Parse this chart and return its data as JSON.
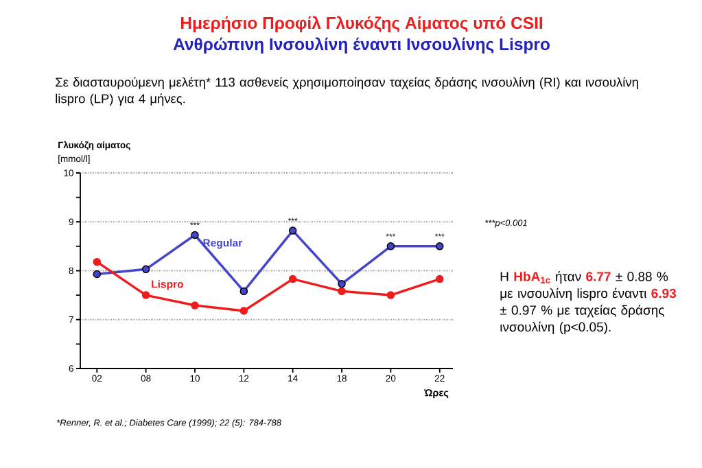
{
  "chart_data": {
    "type": "line",
    "title": "Ημερήσιο Προφίλ Γλυκόζης Αίματος υπό CSII",
    "subtitle": "Ανθρώπινη Ινσουλίνη έναντι Ινσουλίνης Lispro",
    "ylabel": "Γλυκόζη αίματος",
    "xlabel": "Ώρες",
    "categories": [
      "02",
      "08",
      "10",
      "12",
      "14",
      "18",
      "20",
      "22"
    ],
    "series": [
      {
        "name": "Regular",
        "color": "#4444cc",
        "values": [
          7.93,
          8.03,
          8.73,
          7.58,
          8.82,
          7.73,
          8.5,
          8.5
        ]
      },
      {
        "name": "Lispro",
        "color": "#ee1c1c",
        "values": [
          8.18,
          7.5,
          7.29,
          7.18,
          7.83,
          7.58,
          7.5,
          7.83
        ]
      }
    ],
    "ylim": [
      6,
      10
    ],
    "yticks": [
      6,
      7,
      8,
      9,
      10
    ],
    "grid": "y",
    "legend": false,
    "marker": "circle",
    "line_style": "solid",
    "annotations": [
      {
        "text": "***",
        "x": "10",
        "y": 8.73
      },
      {
        "text": "***",
        "x": "14",
        "y": 8.82
      },
      {
        "text": "***",
        "x": "20",
        "y": 8.5
      },
      {
        "text": "***",
        "x": "22",
        "y": 8.5
      },
      "***p<0.001",
      "[mmol/l]",
      "Σε διασταυρούμενη μελέτη* 113 ασθενείς χρησιμοποίησαν ταχείας δράσης ινσουλίνη (RI) και ινσουλίνη lispro (LP) για 4 μήνες.",
      "Η **HbA$_{1c}$** ήταν **6.77** ± 0.88 % με ινσουλίνη lispro έναντι **6.93** ± 0.97 % με  ταχείας δράσης ινσουλίνη (p<0.05).",
      "*Renner, R. et al.; Diabetes Care (1999); 22 (5): 784-788"
    ]
  }
}
